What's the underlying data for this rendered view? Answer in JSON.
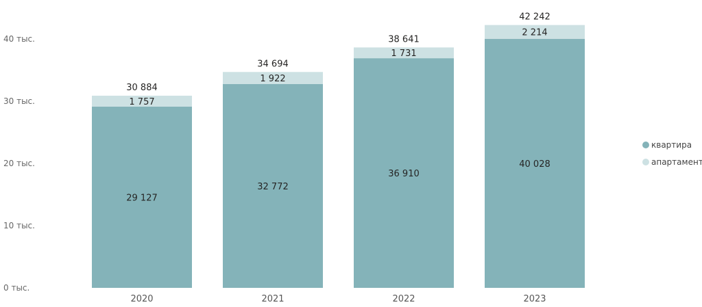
{
  "chart_data": {
    "type": "bar",
    "stacked": true,
    "categories": [
      "2020",
      "2021",
      "2022",
      "2023"
    ],
    "series": [
      {
        "name": "квартира",
        "values": [
          29127,
          32772,
          36910,
          40028
        ],
        "labels": [
          "29 127",
          "32 772",
          "36 910",
          "40 028"
        ],
        "color": "#84b3b9"
      },
      {
        "name": "апартамент",
        "values": [
          1757,
          1922,
          1731,
          2214
        ],
        "labels": [
          "1 757",
          "1 922",
          "1 731",
          "2 214"
        ],
        "color": "#cde1e3"
      }
    ],
    "totals": [
      30884,
      34694,
      38641,
      42242
    ],
    "total_labels": [
      "30 884",
      "34 694",
      "38 641",
      "42 242"
    ],
    "yticks": [
      0,
      10000,
      20000,
      30000,
      40000
    ],
    "ytick_labels": [
      "0 тыс.",
      "10 тыс.",
      "20 тыс.",
      "30 тыс.",
      "40 тыс."
    ],
    "ylim": [
      0,
      42000
    ],
    "title": "",
    "xlabel": "",
    "ylabel": "",
    "grid": false,
    "legend_position": "right"
  }
}
